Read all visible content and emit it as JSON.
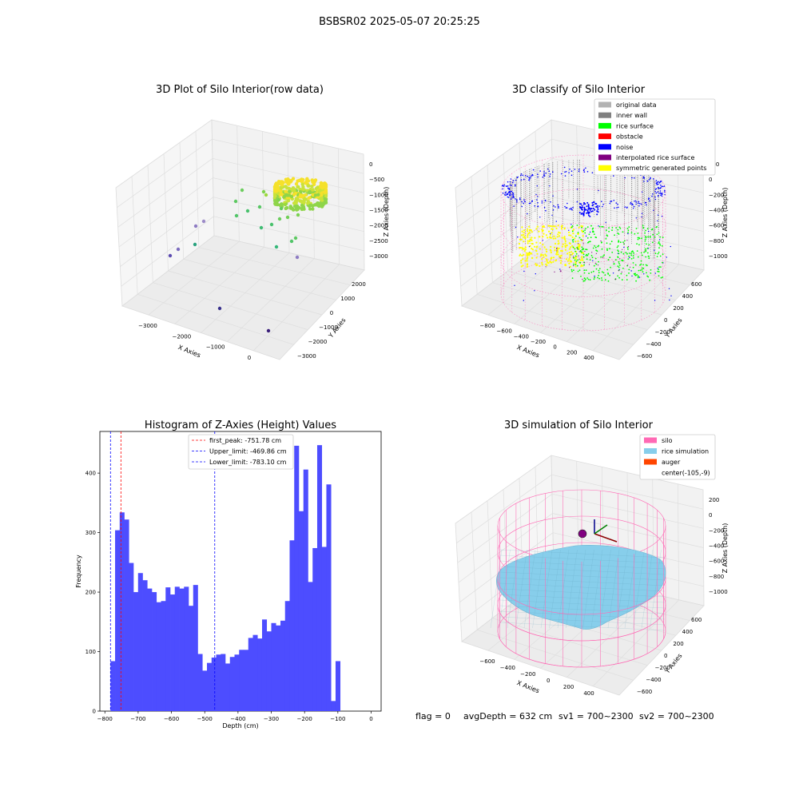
{
  "figure_title": "BSBSR02 2025-05-07 20:25:25",
  "footer": {
    "flag": "flag = 0",
    "avg_depth": "avgDepth = 632 cm",
    "sv1": "sv1 = 700~2300",
    "sv2": "sv2 = 700~2300"
  },
  "colors": {
    "hist_bar": "#4d4dff",
    "peak_line": "#ff0000",
    "limit_line": "#0000ff",
    "silo": "#ff69b4",
    "rice_sim": "#87ceeb",
    "auger": "#ff4500",
    "original": "#b3b3b3",
    "inner_wall": "#808080",
    "rice_surface": "#00ff00",
    "obstacle": "#ff0000",
    "noise": "#0000ff",
    "interpolated": "#800080",
    "symmetric": "#ffff00"
  },
  "chart_data": [
    {
      "type": "scatter",
      "title": "3D Plot of Silo Interior(row data)",
      "xlabel": "X Axies",
      "ylabel": "Y Axies",
      "zlabel": "Z Axies (Depth)",
      "xticks": [
        "−3000",
        "−2000",
        "−1000",
        "0"
      ],
      "yticks": [
        "2000",
        "1000",
        "0",
        "−1000",
        "−2000",
        "−3000"
      ],
      "zticks": [
        "0",
        "−500",
        "−1000",
        "−1500",
        "−2000",
        "−2500",
        "−3000"
      ],
      "xlim": [
        -3500,
        500
      ],
      "ylim": [
        -3500,
        2500
      ],
      "zlim": [
        -3300,
        100
      ]
    },
    {
      "type": "scatter",
      "title": "3D classify of Silo Interior",
      "xlabel": "X Axies",
      "ylabel": "Y Axies",
      "zlabel": "Z Axies (Depth)",
      "xticks": [
        "−800",
        "−600",
        "−400",
        "−200",
        "0",
        "200",
        "400"
      ],
      "yticks": [
        "600",
        "400",
        "200",
        "0",
        "−200",
        "−400",
        "−600"
      ],
      "zticks": [
        "200",
        "0",
        "−200",
        "−400",
        "−600",
        "−800",
        "−1000"
      ],
      "legend": [
        "original data",
        "inner wall",
        "rice surface",
        "obstacle",
        "noise",
        "interpolated rice surface",
        "symmetric generated points"
      ],
      "legend_position": "top-right"
    },
    {
      "type": "bar",
      "title": "Histogram of Z-Axies (Height) Values",
      "xlabel": "Depth (cm)",
      "ylabel": "Frequency",
      "xlim": [
        -815,
        30
      ],
      "ylim": [
        0,
        470
      ],
      "xticks": [
        "−800",
        "−700",
        "−600",
        "−500",
        "−400",
        "−300",
        "−200",
        "−100",
        "0"
      ],
      "yticks": [
        "0",
        "100",
        "200",
        "300",
        "400"
      ],
      "bin_start": -783.1,
      "bin_width": 13.8,
      "values": [
        84,
        304,
        334,
        322,
        249,
        200,
        232,
        220,
        206,
        200,
        183,
        185,
        208,
        196,
        209,
        206,
        209,
        177,
        212,
        96,
        68,
        81,
        90,
        95,
        96,
        80,
        91,
        95,
        103,
        103,
        123,
        128,
        122,
        154,
        134,
        148,
        144,
        152,
        185,
        287,
        446,
        336,
        406,
        217,
        274,
        447,
        276,
        381,
        17,
        84
      ],
      "vlines": [
        {
          "label": "first_peak: -751.78 cm",
          "x": -751.78,
          "color": "#ff0000"
        },
        {
          "label": "Upper_limit: -469.86 cm",
          "x": -469.86,
          "color": "#0000ff"
        },
        {
          "label": "Lower_limit: -783.10 cm",
          "x": -783.1,
          "color": "#0000ff"
        }
      ],
      "legend_position": "top-center"
    },
    {
      "type": "area",
      "title": "3D simulation of Silo Interior",
      "xlabel": "X Axies",
      "ylabel": "Y Axies",
      "zlabel": "Z Axies (Depth)",
      "xticks": [
        "−600",
        "−400",
        "−200",
        "0",
        "200",
        "400"
      ],
      "yticks": [
        "600",
        "400",
        "200",
        "0",
        "−200",
        "−400",
        "−600"
      ],
      "zticks": [
        "200",
        "0",
        "−200",
        "−400",
        "−600",
        "−800",
        "−1000"
      ],
      "legend": [
        "silo",
        "rice simulation",
        "auger",
        "center(-105,-9)"
      ],
      "legend_position": "top-right"
    }
  ]
}
